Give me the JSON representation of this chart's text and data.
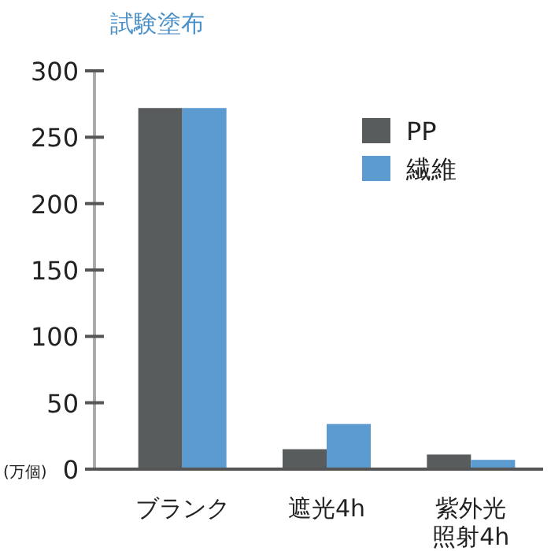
{
  "chart_data": {
    "type": "bar",
    "title": "試験塗布",
    "ylabel": "(万個)",
    "categories": [
      "ブランク",
      "遮光4h",
      "紫外光照射4h"
    ],
    "series": [
      {
        "name": "PP",
        "color": "#595c5d",
        "values": [
          272,
          15,
          11
        ]
      },
      {
        "name": "繊維",
        "color": "#5b9bd0",
        "values": [
          272,
          34,
          7
        ]
      }
    ],
    "ylim": [
      0,
      300
    ],
    "yticks": [
      0,
      50,
      100,
      150,
      200,
      250,
      300
    ],
    "grid": false,
    "legend": "top right"
  }
}
